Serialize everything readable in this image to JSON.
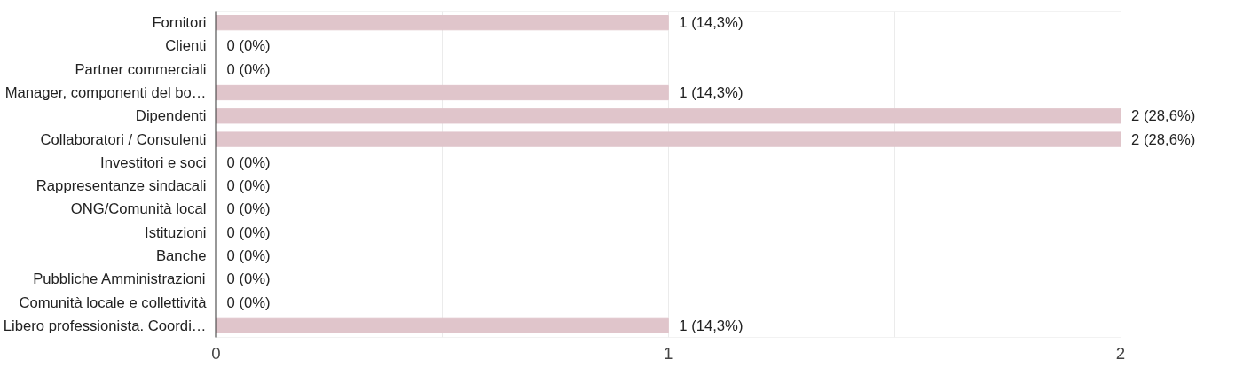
{
  "chart_data": {
    "type": "bar",
    "orientation": "horizontal",
    "categories": [
      "Fornitori",
      "Clienti",
      "Partner commerciali",
      "Manager, componenti del bo…",
      "Dipendenti",
      "Collaboratori / Consulenti",
      "Investitori e soci",
      "Rappresentanze sindacali",
      "ONG/Comunità local",
      "Istituzioni",
      "Banche",
      "Pubbliche Amministrazioni",
      "Comunità locale e collettività",
      "Libero professionista. Coordi…"
    ],
    "values": [
      1,
      0,
      0,
      1,
      2,
      2,
      0,
      0,
      0,
      0,
      0,
      0,
      0,
      1
    ],
    "value_labels": [
      "1 (14,3%)",
      "0 (0%)",
      "0 (0%)",
      "1 (14,3%)",
      "2 (28,6%)",
      "2 (28,6%)",
      "0 (0%)",
      "0 (0%)",
      "0 (0%)",
      "0 (0%)",
      "0 (0%)",
      "0 (0%)",
      "0 (0%)",
      "1 (14,3%)"
    ],
    "color": "#e0c5cb",
    "xlim": [
      0,
      2
    ],
    "xticks": [
      0,
      {
        "value": 0.5,
        "label": null
      },
      1,
      {
        "value": 1.5,
        "label": null
      },
      2
    ],
    "grid": "x"
  }
}
